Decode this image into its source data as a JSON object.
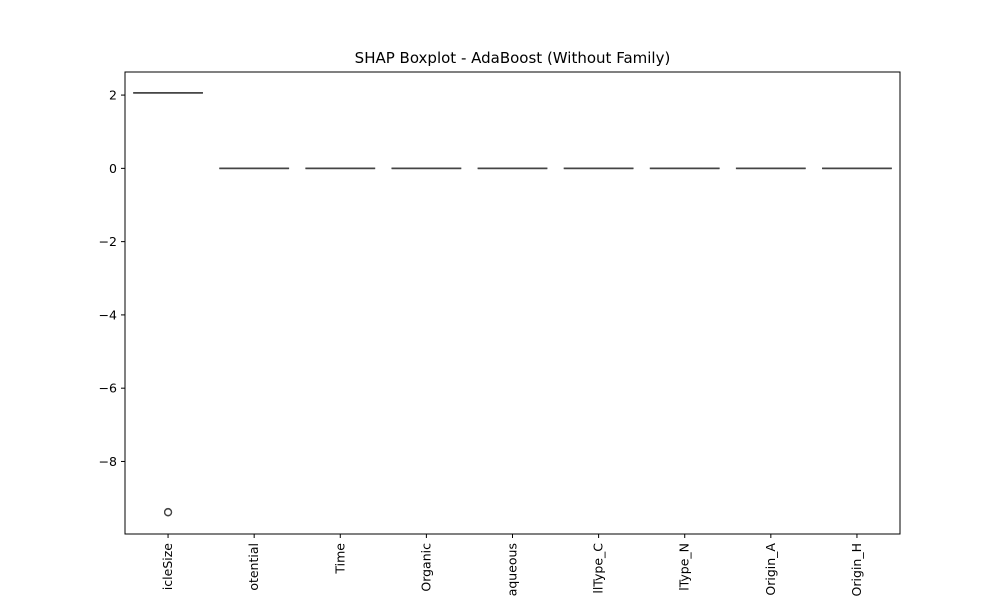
{
  "chart_data": {
    "type": "box",
    "title": "SHAP Boxplot - AdaBoost (Without Family)",
    "xlabel": "",
    "ylabel": "",
    "categories": [
      "icleSize",
      "otential",
      "Time",
      "Organic",
      "aqueous",
      "llType_C",
      "lType_N",
      "Origin_A",
      "Origin_H"
    ],
    "boxes": [
      {
        "q1": 2.06,
        "median": 2.06,
        "q3": 2.06,
        "whisker_low": 2.06,
        "whisker_high": 2.06,
        "outliers": [
          -9.39,
          -9.38
        ]
      },
      {
        "q1": 0,
        "median": 0,
        "q3": 0,
        "whisker_low": 0,
        "whisker_high": 0,
        "outliers": []
      },
      {
        "q1": 0,
        "median": 0,
        "q3": 0,
        "whisker_low": 0,
        "whisker_high": 0,
        "outliers": []
      },
      {
        "q1": 0,
        "median": 0,
        "q3": 0,
        "whisker_low": 0,
        "whisker_high": 0,
        "outliers": []
      },
      {
        "q1": 0,
        "median": 0,
        "q3": 0,
        "whisker_low": 0,
        "whisker_high": 0,
        "outliers": []
      },
      {
        "q1": 0,
        "median": 0,
        "q3": 0,
        "whisker_low": 0,
        "whisker_high": 0,
        "outliers": []
      },
      {
        "q1": 0,
        "median": 0,
        "q3": 0,
        "whisker_low": 0,
        "whisker_high": 0,
        "outliers": []
      },
      {
        "q1": 0,
        "median": 0,
        "q3": 0,
        "whisker_low": 0,
        "whisker_high": 0,
        "outliers": []
      },
      {
        "q1": 0,
        "median": 0,
        "q3": 0,
        "whisker_low": 0,
        "whisker_high": 0,
        "outliers": []
      }
    ],
    "y_ticks": [
      2,
      0,
      -2,
      -4,
      -6,
      -8
    ],
    "y_tick_labels": [
      "2",
      "0",
      "−2",
      "−4",
      "−6",
      "−8"
    ],
    "ylim": [
      -9.98,
      2.63
    ],
    "grid": false,
    "colors": {
      "box": "#444444",
      "axis": "#000000"
    }
  }
}
